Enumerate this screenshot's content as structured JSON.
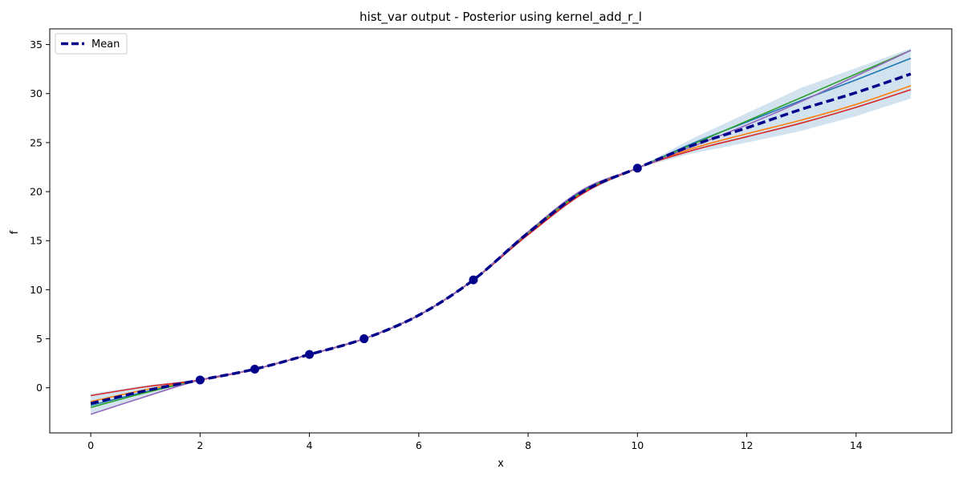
{
  "chart_data": {
    "type": "line",
    "title": "hist_var output - Posterior using kernel_add_r_l",
    "xlabel": "x",
    "ylabel": "f",
    "xlim": [
      -0.75,
      15.75
    ],
    "ylim": [
      -4.6,
      36.6
    ],
    "xticks": [
      0,
      2,
      4,
      6,
      8,
      10,
      12,
      14
    ],
    "yticks": [
      0,
      5,
      10,
      15,
      20,
      25,
      30,
      35
    ],
    "grid": false,
    "legend": {
      "position": "top-left",
      "entries": [
        "Mean"
      ]
    },
    "colors": {
      "mean": "#00008b",
      "band": "#a6c8e0",
      "observations": "#00008b",
      "samples": [
        "#1f77b4",
        "#ff7f0e",
        "#2ca02c",
        "#d62728",
        "#9467bd"
      ]
    },
    "observations": {
      "x": [
        2,
        3,
        4,
        5,
        7,
        10
      ],
      "y": [
        0.8,
        1.9,
        3.4,
        5.0,
        11.0,
        22.4
      ]
    },
    "mean": {
      "name": "Mean",
      "x": [
        0,
        1,
        2,
        3,
        4,
        5,
        6,
        7,
        8,
        9,
        10,
        11,
        12,
        13,
        14,
        15
      ],
      "y": [
        -1.6,
        -0.3,
        0.8,
        1.9,
        3.4,
        5.0,
        7.4,
        11.0,
        15.8,
        20.0,
        22.4,
        24.7,
        26.5,
        28.4,
        30.1,
        32.0
      ]
    },
    "confidence_band": {
      "x": [
        0,
        1,
        2,
        3,
        4,
        5,
        6,
        7,
        8,
        9,
        10,
        11,
        12,
        13,
        14,
        15
      ],
      "lower": [
        -2.7,
        -0.9,
        0.75,
        1.85,
        3.35,
        4.95,
        7.35,
        10.95,
        15.6,
        19.8,
        22.4,
        23.9,
        25.0,
        26.2,
        27.7,
        29.5
      ],
      "upper": [
        -0.6,
        0.25,
        0.85,
        1.95,
        3.45,
        5.05,
        7.45,
        11.05,
        16.0,
        20.2,
        22.4,
        25.4,
        28.0,
        30.6,
        32.6,
        34.6
      ]
    },
    "samples": [
      {
        "x": [
          0,
          1,
          2,
          3,
          4,
          5,
          6,
          7,
          8,
          9,
          10,
          11,
          12,
          13,
          14,
          15
        ],
        "y": [
          -1.8,
          -0.4,
          0.8,
          1.9,
          3.4,
          5.0,
          7.4,
          11.0,
          15.9,
          20.1,
          22.4,
          24.9,
          27.1,
          29.3,
          31.4,
          33.6
        ]
      },
      {
        "x": [
          0,
          1,
          2,
          3,
          4,
          5,
          6,
          7,
          8,
          9,
          10,
          11,
          12,
          13,
          14,
          15
        ],
        "y": [
          -1.4,
          -0.2,
          0.8,
          1.9,
          3.4,
          5.0,
          7.4,
          11.0,
          15.7,
          19.9,
          22.4,
          24.4,
          25.9,
          27.3,
          28.9,
          30.8
        ]
      },
      {
        "x": [
          0,
          1,
          2,
          3,
          4,
          5,
          6,
          7,
          8,
          9,
          10,
          11,
          12,
          13,
          14,
          15
        ],
        "y": [
          -2.0,
          -0.5,
          0.8,
          1.9,
          3.4,
          5.0,
          7.4,
          11.0,
          15.8,
          20.0,
          22.4,
          24.8,
          27.2,
          29.6,
          32.0,
          34.4
        ]
      },
      {
        "x": [
          0,
          1,
          2,
          3,
          4,
          5,
          6,
          7,
          8,
          9,
          10,
          11,
          12,
          13,
          14,
          15
        ],
        "y": [
          -0.8,
          0.1,
          0.8,
          1.9,
          3.4,
          5.0,
          7.4,
          11.0,
          15.6,
          19.8,
          22.4,
          24.2,
          25.6,
          27.0,
          28.6,
          30.4
        ]
      },
      {
        "x": [
          0,
          1,
          2,
          3,
          4,
          5,
          6,
          7,
          8,
          9,
          10,
          11,
          12,
          13,
          14,
          15
        ],
        "y": [
          -2.7,
          -0.9,
          0.8,
          1.9,
          3.4,
          5.0,
          7.4,
          11.0,
          15.9,
          20.2,
          22.4,
          24.6,
          26.8,
          29.2,
          31.8,
          34.4
        ]
      }
    ]
  }
}
